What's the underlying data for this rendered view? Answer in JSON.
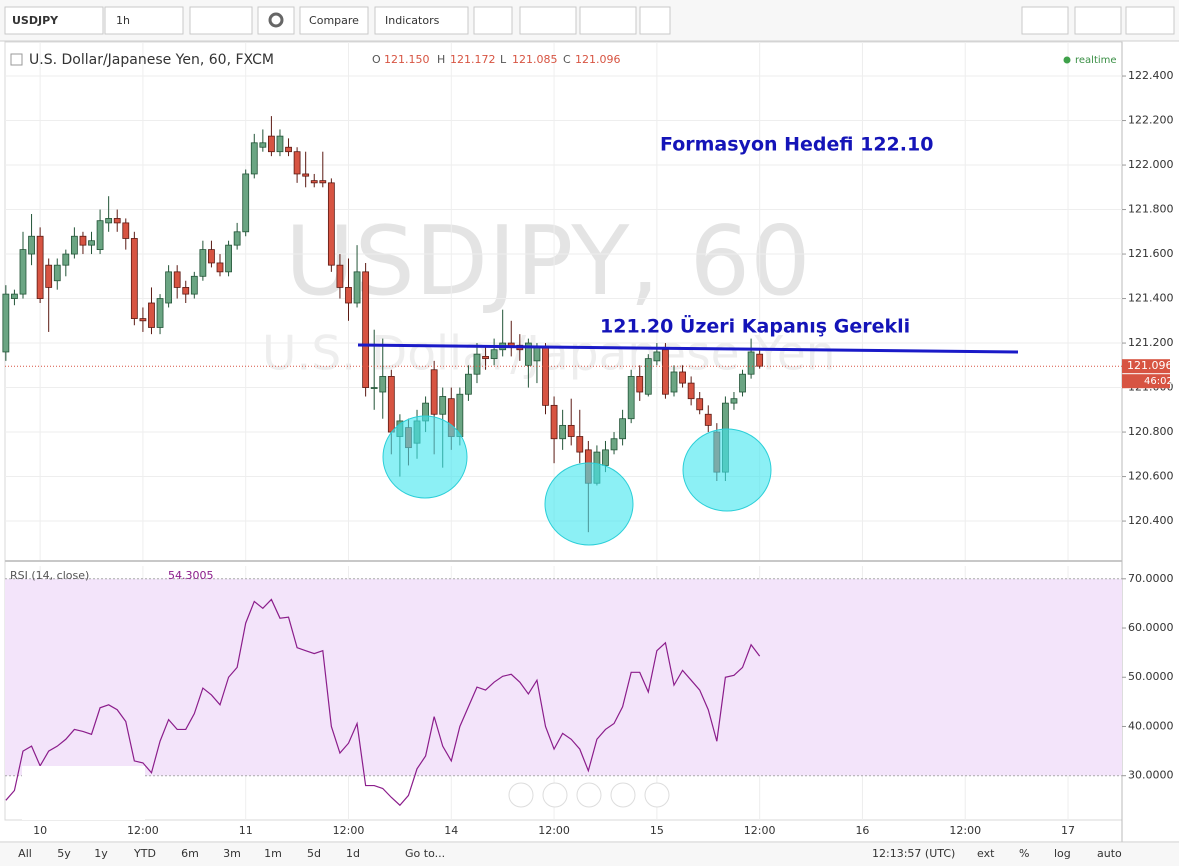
{
  "toolbar": {
    "symbol": "USDJPY",
    "interval": "1h",
    "compare": "Compare",
    "indicators": "Indicators"
  },
  "legend": {
    "title": "U.S. Dollar/Japanese Yen, 60, FXCM",
    "o_label": "O",
    "o": "121.150",
    "h_label": "H",
    "h": "121.172",
    "l_label": "L",
    "l": "121.085",
    "c_label": "C",
    "c": "121.096",
    "status": "realtime"
  },
  "watermark": {
    "symbol": "USDJPY, 60",
    "description": "U.S. Dollar/Japanese Yen"
  },
  "price_tag": "121.096",
  "countdown": "46:02",
  "chart_data": [
    {
      "type": "candlestick",
      "up_color": "#6ba583",
      "down_color": "#d75442",
      "open": [
        121.16,
        121.4,
        121.42,
        121.6,
        121.68,
        121.55,
        121.48,
        121.55,
        121.6,
        121.68,
        121.64,
        121.62,
        121.74,
        121.76,
        121.74,
        121.67,
        121.31,
        121.38,
        121.27,
        121.38,
        121.52,
        121.45,
        121.42,
        121.5,
        121.62,
        121.56,
        121.52,
        121.64,
        121.7,
        121.96,
        122.08,
        122.13,
        122.06,
        122.08,
        122.06,
        121.96,
        121.93,
        121.93,
        121.92,
        121.55,
        121.45,
        121.38,
        121.52,
        121.0,
        120.98,
        121.05,
        120.78,
        120.82,
        120.75,
        120.85,
        121.08,
        120.88,
        120.95,
        120.78,
        120.97,
        121.06,
        121.14,
        121.13,
        121.17,
        121.2,
        121.19,
        121.1,
        121.12,
        121.18,
        120.92,
        120.77,
        120.83,
        120.78,
        120.72,
        120.57,
        120.65,
        120.72,
        120.77,
        120.86,
        121.05,
        120.97,
        121.12,
        121.17,
        120.98,
        121.07,
        121.02,
        120.95,
        120.88,
        120.8,
        120.62,
        120.93,
        120.98,
        121.06,
        121.15
      ],
      "high": [
        121.46,
        121.44,
        121.7,
        121.78,
        121.72,
        121.58,
        121.58,
        121.62,
        121.72,
        121.7,
        121.7,
        121.8,
        121.86,
        121.8,
        121.76,
        121.7,
        121.36,
        121.45,
        121.42,
        121.55,
        121.55,
        121.48,
        121.52,
        121.66,
        121.66,
        121.6,
        121.66,
        121.74,
        121.98,
        122.14,
        122.16,
        122.22,
        122.16,
        122.12,
        122.08,
        122.06,
        121.96,
        122.06,
        121.94,
        121.6,
        121.58,
        121.64,
        121.56,
        121.26,
        121.22,
        121.08,
        120.88,
        120.86,
        120.9,
        120.96,
        121.12,
        121.0,
        121.0,
        121.0,
        121.1,
        121.2,
        121.18,
        121.22,
        121.35,
        121.3,
        121.24,
        121.22,
        121.2,
        121.2,
        120.96,
        120.9,
        120.95,
        120.9,
        120.76,
        120.74,
        120.76,
        120.8,
        120.9,
        121.08,
        121.1,
        121.15,
        121.2,
        121.2,
        121.1,
        121.1,
        121.05,
        120.98,
        120.92,
        120.84,
        120.96,
        120.98,
        121.08,
        121.22,
        121.172
      ],
      "low": [
        121.12,
        121.37,
        121.4,
        121.55,
        121.38,
        121.25,
        121.44,
        121.5,
        121.58,
        121.6,
        121.6,
        121.6,
        121.7,
        121.7,
        121.62,
        121.28,
        121.25,
        121.24,
        121.24,
        121.36,
        121.4,
        121.38,
        121.4,
        121.48,
        121.54,
        121.5,
        121.5,
        121.62,
        121.68,
        121.94,
        122.06,
        122.04,
        122.04,
        122.04,
        121.92,
        121.9,
        121.9,
        121.9,
        121.52,
        121.4,
        121.3,
        121.36,
        120.96,
        120.9,
        120.86,
        120.7,
        120.6,
        120.65,
        120.68,
        120.8,
        120.7,
        120.64,
        120.72,
        120.74,
        120.94,
        121.02,
        121.08,
        121.1,
        121.14,
        121.14,
        121.12,
        121.0,
        121.02,
        120.88,
        120.66,
        120.72,
        120.74,
        120.66,
        120.35,
        120.56,
        120.62,
        120.7,
        120.74,
        120.84,
        120.94,
        120.96,
        121.1,
        120.95,
        120.96,
        121.0,
        120.92,
        120.88,
        120.8,
        120.58,
        120.58,
        120.9,
        120.96,
        121.04,
        121.085
      ],
      "close": [
        121.42,
        121.42,
        121.62,
        121.68,
        121.4,
        121.45,
        121.55,
        121.6,
        121.68,
        121.64,
        121.66,
        121.75,
        121.76,
        121.74,
        121.67,
        121.31,
        121.3,
        121.27,
        121.4,
        121.52,
        121.45,
        121.42,
        121.5,
        121.62,
        121.56,
        121.52,
        121.64,
        121.7,
        121.96,
        122.1,
        122.1,
        122.06,
        122.13,
        122.06,
        121.96,
        121.95,
        121.92,
        121.92,
        121.55,
        121.45,
        121.38,
        121.52,
        121.0,
        121.0,
        121.05,
        120.8,
        120.85,
        120.73,
        120.85,
        120.93,
        120.88,
        120.96,
        120.78,
        120.97,
        121.06,
        121.15,
        121.13,
        121.17,
        121.2,
        121.18,
        121.17,
        121.2,
        121.18,
        120.92,
        120.77,
        120.83,
        120.78,
        120.71,
        120.57,
        120.71,
        120.72,
        120.77,
        120.86,
        121.05,
        120.98,
        121.13,
        121.16,
        120.97,
        121.07,
        121.02,
        120.95,
        120.9,
        120.83,
        120.62,
        120.93,
        120.95,
        121.06,
        121.16,
        121.096
      ],
      "ylim": [
        120.225,
        122.553
      ],
      "yticks": [
        {
          "value": 120.4,
          "label": "120.400"
        },
        {
          "value": 120.6,
          "label": "120.600"
        },
        {
          "value": 120.8,
          "label": "120.800"
        },
        {
          "value": 121.0,
          "label": "121.000"
        },
        {
          "value": 121.2,
          "label": "121.200"
        },
        {
          "value": 121.4,
          "label": "121.400"
        },
        {
          "value": 121.6,
          "label": "121.600"
        },
        {
          "value": 121.8,
          "label": "121.800"
        },
        {
          "value": 122.0,
          "label": "122.000"
        },
        {
          "value": 122.2,
          "label": "122.200"
        },
        {
          "value": 122.4,
          "label": "122.400"
        }
      ],
      "xlim": [
        -0.1,
        130.3
      ],
      "xticks": [
        {
          "value": 4,
          "label": "10"
        },
        {
          "value": 16,
          "label": "12:00"
        },
        {
          "value": 28,
          "label": "11"
        },
        {
          "value": 40,
          "label": "12:00"
        },
        {
          "value": 52,
          "label": "14"
        },
        {
          "value": 64,
          "label": "12:00"
        },
        {
          "value": 76,
          "label": "15"
        },
        {
          "value": 88,
          "label": "12:00"
        },
        {
          "value": 100,
          "label": "16"
        },
        {
          "value": 112,
          "label": "12:00"
        },
        {
          "value": 124,
          "label": "17"
        }
      ],
      "annotations": [
        "Formasyon Hedefi 122.10",
        "121.20 Üzeri Kapanış Gerekli"
      ],
      "annotation_color": "#1414b8",
      "grid": true
    },
    {
      "type": "line",
      "title": "RSI (14, close)",
      "value_label": "54.3005",
      "color": "#8b1d8b",
      "band": [
        30,
        70
      ],
      "band_color": "#f3e4fa",
      "values": [
        25,
        27,
        35,
        36,
        32,
        35,
        36,
        37.4,
        39.4,
        39,
        38.4,
        43.8,
        44.4,
        43.4,
        41,
        33,
        32.6,
        30.6,
        37,
        41.4,
        39.4,
        39.4,
        42.6,
        47.8,
        46.4,
        44.4,
        50,
        52,
        61,
        65.4,
        64,
        65.8,
        62,
        62.2,
        56,
        55.4,
        54.8,
        55.4,
        40,
        34.6,
        36.6,
        40.6,
        28,
        28,
        27.4,
        25.6,
        24,
        26,
        31.4,
        34,
        42,
        36,
        33,
        40,
        44,
        48,
        47.4,
        49,
        50.2,
        50.6,
        49,
        46.6,
        49.4,
        40,
        35.4,
        38.6,
        37.4,
        35.4,
        31,
        37.4,
        39.4,
        40.6,
        44,
        51,
        51,
        47,
        55.4,
        57,
        48.4,
        51.4,
        49.4,
        47.4,
        43.4,
        37,
        50,
        50.4,
        52,
        56.6,
        54.3
      ],
      "ylim": [
        21,
        72.6
      ],
      "yticks": [
        {
          "value": 30,
          "label": "30.0000"
        },
        {
          "value": 40,
          "label": "40.0000"
        },
        {
          "value": 50,
          "label": "50.0000"
        },
        {
          "value": 60,
          "label": "60.0000"
        },
        {
          "value": 70,
          "label": "70.0000"
        }
      ]
    }
  ],
  "bottom_bar": {
    "ranges": [
      "All",
      "5y",
      "1y",
      "YTD",
      "6m",
      "3m",
      "1m",
      "5d",
      "1d"
    ],
    "goto": "Go to...",
    "clock": "12:13:57 (UTC)",
    "ext": "ext",
    "percent": "%",
    "log": "log",
    "auto": "auto"
  }
}
